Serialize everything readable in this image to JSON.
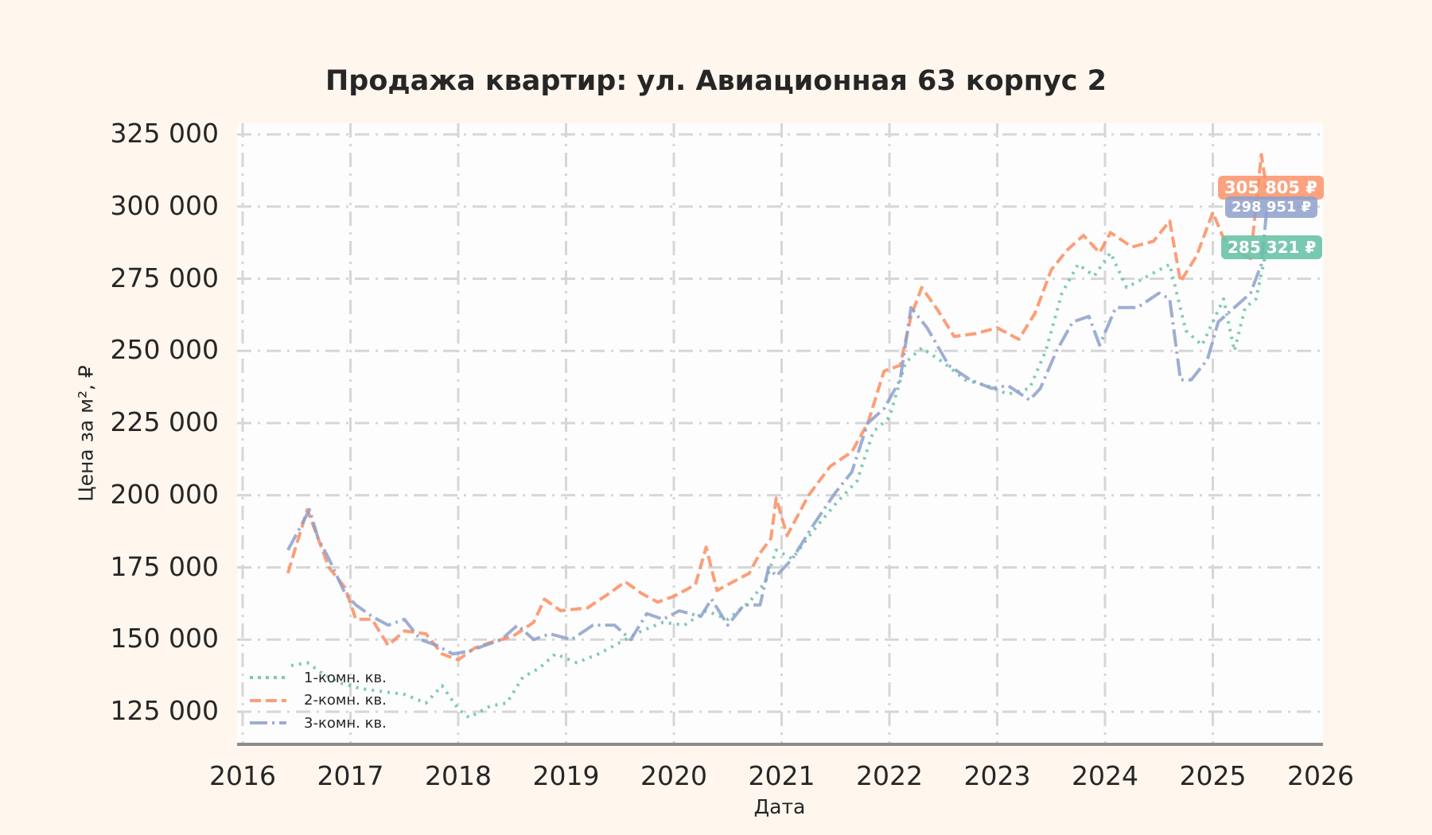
{
  "chart_data": {
    "type": "line",
    "title": "Продажа квартир: ул. Авиационная 63 корпус 2",
    "xlabel": "Дата",
    "ylabel": "Цена за м², ₽",
    "xlim": [
      2016,
      2026
    ],
    "ylim": [
      115000,
      330000
    ],
    "x_ticks": [
      "2016",
      "2017",
      "2018",
      "2019",
      "2020",
      "2021",
      "2022",
      "2023",
      "2024",
      "2025",
      "2026"
    ],
    "y_ticks": [
      "125 000",
      "150 000",
      "175 000",
      "200 000",
      "225 000",
      "250 000",
      "275 000",
      "300 000",
      "325 000"
    ],
    "grid": true,
    "legend_position": "lower left",
    "series": [
      {
        "name": "1-комн. кв.",
        "color": "#66c2a5",
        "style": "dotted",
        "last_value_label": "285 321 ₽",
        "x": [
          2016.45,
          2016.6,
          2016.75,
          2016.9,
          2017.1,
          2017.3,
          2017.5,
          2017.7,
          2017.85,
          2018.0,
          2018.1,
          2018.3,
          2018.45,
          2018.6,
          2018.75,
          2018.9,
          2019.1,
          2019.3,
          2019.5,
          2019.7,
          2019.9,
          2020.1,
          2020.3,
          2020.5,
          2020.7,
          2020.85,
          2020.95,
          2021.1,
          2021.3,
          2021.5,
          2021.7,
          2021.85,
          2022.0,
          2022.15,
          2022.3,
          2022.5,
          2022.7,
          2022.9,
          2023.1,
          2023.3,
          2023.45,
          2023.6,
          2023.75,
          2023.9,
          2024.05,
          2024.2,
          2024.4,
          2024.6,
          2024.75,
          2024.9,
          2025.0,
          2025.1,
          2025.2,
          2025.3,
          2025.4,
          2025.5
        ],
        "values": [
          141000,
          142000,
          138000,
          135000,
          133000,
          132000,
          131000,
          128000,
          134000,
          126000,
          123000,
          127000,
          128000,
          137000,
          140000,
          145000,
          142000,
          145000,
          149000,
          153000,
          156000,
          155000,
          160000,
          157000,
          163000,
          170000,
          181000,
          178000,
          188000,
          197000,
          205000,
          222000,
          227000,
          246000,
          251000,
          246000,
          240000,
          238000,
          235000,
          237000,
          250000,
          270000,
          280000,
          276000,
          284000,
          272000,
          276000,
          280000,
          257000,
          252000,
          260000,
          268000,
          250000,
          265000,
          268000,
          285321
        ]
      },
      {
        "name": "2-комн. кв.",
        "color": "#fc8d62",
        "style": "dashed",
        "last_value_label": "305 805 ₽",
        "x": [
          2016.42,
          2016.5,
          2016.6,
          2016.7,
          2016.8,
          2016.95,
          2017.05,
          2017.2,
          2017.35,
          2017.5,
          2017.7,
          2017.85,
          2018.0,
          2018.15,
          2018.3,
          2018.5,
          2018.7,
          2018.8,
          2018.95,
          2019.2,
          2019.4,
          2019.55,
          2019.7,
          2019.85,
          2020.0,
          2020.2,
          2020.3,
          2020.4,
          2020.55,
          2020.7,
          2020.8,
          2020.9,
          2020.95,
          2021.05,
          2021.25,
          2021.45,
          2021.65,
          2021.8,
          2021.95,
          2022.1,
          2022.2,
          2022.3,
          2022.45,
          2022.6,
          2022.8,
          2023.0,
          2023.2,
          2023.35,
          2023.5,
          2023.65,
          2023.8,
          2023.95,
          2024.05,
          2024.25,
          2024.45,
          2024.6,
          2024.7,
          2024.85,
          2025.0,
          2025.1,
          2025.2,
          2025.35,
          2025.45,
          2025.5
        ],
        "values": [
          173000,
          183000,
          195000,
          185000,
          175000,
          168000,
          157000,
          157000,
          148000,
          153000,
          152000,
          145000,
          143000,
          147000,
          149000,
          151000,
          156000,
          164000,
          160000,
          161000,
          166000,
          170000,
          166000,
          163000,
          165000,
          169000,
          182000,
          167000,
          170000,
          173000,
          180000,
          185000,
          199000,
          186000,
          200000,
          210000,
          215000,
          225000,
          243000,
          245000,
          262000,
          272000,
          264000,
          255000,
          256000,
          258000,
          254000,
          263000,
          278000,
          285000,
          290000,
          284000,
          291000,
          286000,
          288000,
          295000,
          274000,
          283000,
          298000,
          289000,
          285000,
          282000,
          318000,
          305805
        ]
      },
      {
        "name": "3-комн. кв.",
        "color": "#8da0cb",
        "style": "dashdot",
        "last_value_label": "298 951 ₽",
        "x": [
          2016.42,
          2016.55,
          2016.62,
          2016.7,
          2016.8,
          2016.95,
          2017.05,
          2017.2,
          2017.35,
          2017.5,
          2017.65,
          2017.8,
          2017.95,
          2018.1,
          2018.25,
          2018.4,
          2018.55,
          2018.7,
          2018.85,
          2019.05,
          2019.25,
          2019.45,
          2019.6,
          2019.75,
          2019.9,
          2020.05,
          2020.25,
          2020.35,
          2020.5,
          2020.65,
          2020.8,
          2020.88,
          2020.95,
          2021.1,
          2021.3,
          2021.5,
          2021.65,
          2021.8,
          2021.95,
          2022.1,
          2022.2,
          2022.35,
          2022.55,
          2022.75,
          2022.95,
          2023.1,
          2023.3,
          2023.4,
          2023.55,
          2023.7,
          2023.85,
          2023.95,
          2024.1,
          2024.3,
          2024.5,
          2024.6,
          2024.7,
          2024.8,
          2024.95,
          2025.05,
          2025.2,
          2025.35,
          2025.45,
          2025.5
        ],
        "values": [
          181000,
          190000,
          195000,
          185000,
          178000,
          166000,
          162000,
          158000,
          155000,
          157000,
          150000,
          148000,
          145000,
          146000,
          148000,
          150000,
          155000,
          150000,
          152000,
          150000,
          155000,
          155000,
          150000,
          159000,
          157000,
          160000,
          158000,
          164000,
          155000,
          162000,
          162000,
          175000,
          172000,
          178000,
          190000,
          201000,
          208000,
          225000,
          230000,
          240000,
          265000,
          258000,
          245000,
          240000,
          237000,
          238000,
          233000,
          237000,
          250000,
          260000,
          262000,
          252000,
          265000,
          265000,
          270000,
          268000,
          240000,
          240000,
          247000,
          260000,
          265000,
          270000,
          280000,
          298951
        ]
      }
    ]
  },
  "title": "Продажа квартир: ул. Авиационная 63 корпус 2",
  "xaxis": {
    "label": "Дата",
    "ticks": [
      "2016",
      "2017",
      "2018",
      "2019",
      "2020",
      "2021",
      "2022",
      "2023",
      "2024",
      "2025",
      "2026"
    ]
  },
  "yaxis": {
    "label": "Цена за м², ₽",
    "ticks": [
      "125 000",
      "150 000",
      "175 000",
      "200 000",
      "225 000",
      "250 000",
      "275 000",
      "300 000",
      "325 000"
    ]
  },
  "legend": {
    "items": [
      {
        "label": "1-комн. кв.",
        "color": "#66c2a5"
      },
      {
        "label": "2-комн. кв.",
        "color": "#fc8d62"
      },
      {
        "label": "3-комн. кв.",
        "color": "#8da0cb"
      }
    ]
  },
  "badges": {
    "two_room": "305 805 ₽",
    "three_room": "298 951 ₽",
    "one_room": "285 321 ₽"
  }
}
